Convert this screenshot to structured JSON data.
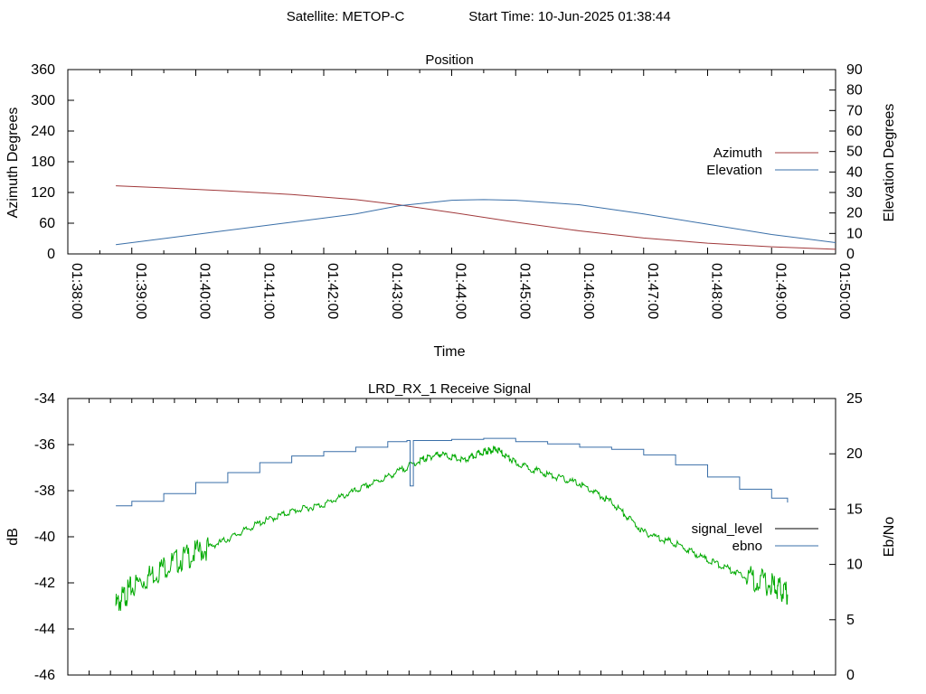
{
  "header": {
    "satellite": "Satellite: METOP-C",
    "start_time": "Start Time: 10-Jun-2025 01:38:44"
  },
  "chart_data": [
    {
      "type": "line",
      "title": "Position",
      "xlabel": "Time",
      "ylabel": "Azimuth Degrees",
      "ylabel_right": "Elevation Degrees",
      "ylim": [
        0,
        360
      ],
      "ylim_right": [
        0,
        90
      ],
      "yticks": [
        0,
        60,
        120,
        180,
        240,
        300,
        360
      ],
      "yticks_right": [
        0,
        10,
        20,
        30,
        40,
        50,
        60,
        70,
        80,
        90
      ],
      "xlim_minutes": [
        0,
        12
      ],
      "xtick_labels": [
        "01:38:00",
        "01:39:00",
        "01:40:00",
        "01:41:00",
        "01:42:00",
        "01:43:00",
        "01:44:00",
        "01:45:00",
        "01:46:00",
        "01:47:00",
        "01:48:00",
        "01:49:00",
        "01:50:00"
      ],
      "legend_position": "right",
      "grid": false,
      "series": [
        {
          "name": "Azimuth",
          "axis": "left",
          "color": "#a0383a",
          "x": [
            0.75,
            1.5,
            2.5,
            3.5,
            4.5,
            5.17,
            6.0,
            7.0,
            8.0,
            9.0,
            10.0,
            11.0,
            12.0
          ],
          "y": [
            133,
            129,
            123,
            116,
            106,
            96,
            81,
            62,
            45,
            31,
            21,
            14,
            9
          ]
        },
        {
          "name": "Elevation",
          "axis": "right",
          "color": "#3a6fa8",
          "x": [
            0.75,
            1.5,
            2.5,
            3.5,
            4.5,
            5.17,
            6.0,
            6.5,
            7.0,
            8.0,
            9.0,
            10.0,
            11.0,
            12.0
          ],
          "y": [
            4.5,
            7.5,
            11.5,
            15.5,
            19.5,
            23.5,
            26.2,
            26.5,
            26.2,
            24,
            19.5,
            14.5,
            9.5,
            5.5
          ]
        }
      ]
    },
    {
      "type": "line",
      "title": "LRD_RX_1 Receive Signal",
      "ylabel": "dB",
      "ylabel_right": "Eb/No",
      "ylim": [
        -46,
        -34
      ],
      "ylim_right": [
        0,
        25
      ],
      "yticks": [
        -46,
        -44,
        -42,
        -40,
        -38,
        -36,
        -34
      ],
      "yticks_right": [
        0,
        5,
        10,
        15,
        20,
        25
      ],
      "xlim_minutes": [
        0,
        12
      ],
      "legend_position": "right",
      "grid": false,
      "series": [
        {
          "name": "signal_level",
          "axis": "left",
          "color": "#00aa00",
          "x": [
            0.75,
            1.0,
            1.5,
            2.0,
            2.5,
            3.0,
            3.5,
            4.0,
            4.5,
            5.0,
            5.5,
            5.8,
            6.2,
            6.5,
            6.7,
            7.0,
            7.5,
            8.0,
            8.5,
            9.0,
            9.5,
            10.0,
            10.5,
            11.0,
            11.25
          ],
          "y": [
            -43,
            -42.2,
            -41.3,
            -40.7,
            -40.1,
            -39.4,
            -38.9,
            -38.6,
            -38.0,
            -37.4,
            -36.7,
            -36.4,
            -36.7,
            -36.3,
            -36.2,
            -36.8,
            -37.3,
            -37.7,
            -38.5,
            -39.8,
            -40.3,
            -41.0,
            -41.6,
            -42.1,
            -42.5
          ]
        },
        {
          "name": "ebno",
          "axis": "right",
          "color": "#3a6fa8",
          "x": [
            0.75,
            1.0,
            1.5,
            2.0,
            2.5,
            3.0,
            3.5,
            4.0,
            4.5,
            5.0,
            5.3,
            5.35,
            5.4,
            5.5,
            6.0,
            6.5,
            7.0,
            7.5,
            8.0,
            8.5,
            9.0,
            9.5,
            10.0,
            10.5,
            11.0,
            11.25
          ],
          "y": [
            15.3,
            15.7,
            16.4,
            17.4,
            18.3,
            19.2,
            19.8,
            20.2,
            20.6,
            21.1,
            21.2,
            17.1,
            21.2,
            21.2,
            21.3,
            21.4,
            21.1,
            20.9,
            20.6,
            20.4,
            19.9,
            19.0,
            17.9,
            16.8,
            16.0,
            15.6
          ]
        }
      ]
    }
  ]
}
